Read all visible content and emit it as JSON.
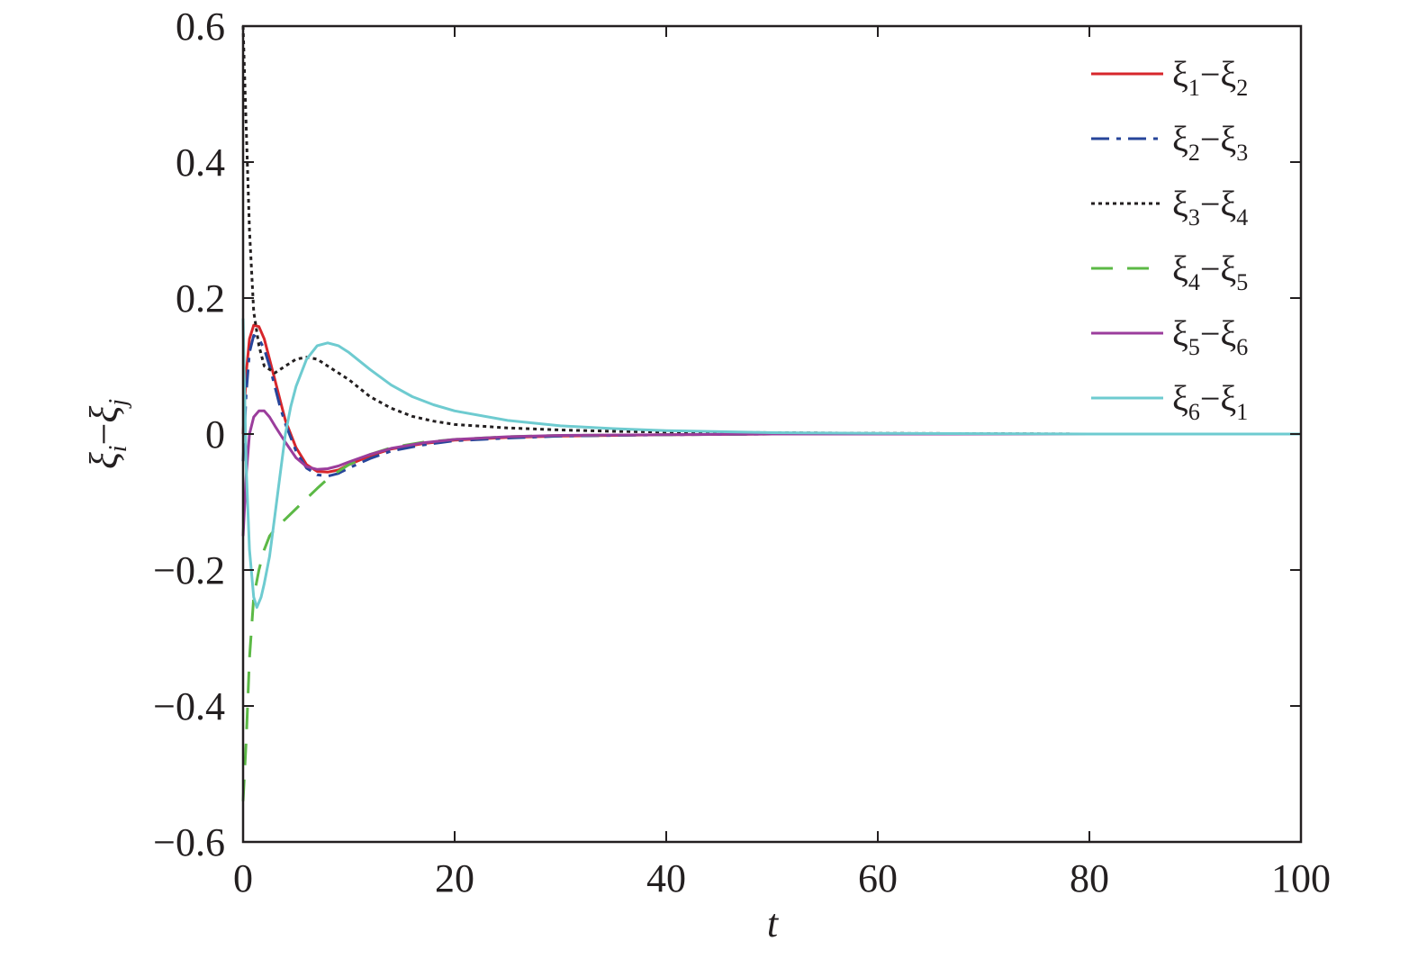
{
  "chart_data": {
    "type": "line",
    "title": "",
    "xlabel": "t",
    "ylabel": "ξi−ξj",
    "ylabel_parts": {
      "main": "ξ",
      "i": "i",
      "minus": "−",
      "j": "j"
    },
    "xlim": [
      0,
      100
    ],
    "ylim": [
      -0.6,
      0.6
    ],
    "xticks": [
      0,
      20,
      40,
      60,
      80,
      100
    ],
    "xtick_labels": [
      "0",
      "20",
      "40",
      "60",
      "80",
      "100"
    ],
    "yticks": [
      -0.6,
      -0.4,
      -0.2,
      0,
      0.2,
      0.4,
      0.6
    ],
    "ytick_labels": [
      "−0.6",
      "−0.4",
      "−0.2",
      "0",
      "0.2",
      "0.4",
      "0.6"
    ],
    "grid": false,
    "legend_position": "top-right",
    "series": [
      {
        "name": "ξ1−ξ2",
        "label_parts": [
          "ξ",
          "1",
          "−",
          "ξ",
          "2"
        ],
        "color": "#d7262b",
        "dash": "solid",
        "x": [
          0,
          0.3,
          0.6,
          1,
          1.5,
          2,
          2.5,
          3,
          3.5,
          4,
          5,
          6,
          7,
          8,
          9,
          10,
          12,
          14,
          17,
          20,
          25,
          30,
          40,
          50,
          60,
          80,
          100
        ],
        "y": [
          0.0,
          0.09,
          0.14,
          0.16,
          0.158,
          0.14,
          0.11,
          0.08,
          0.05,
          0.02,
          -0.02,
          -0.045,
          -0.055,
          -0.056,
          -0.053,
          -0.045,
          -0.032,
          -0.022,
          -0.014,
          -0.009,
          -0.005,
          -0.003,
          -0.001,
          0.0,
          0.0,
          0.0,
          0.0
        ]
      },
      {
        "name": "ξ2−ξ3",
        "label_parts": [
          "ξ",
          "2",
          "−",
          "ξ",
          "3"
        ],
        "color": "#27459a",
        "dash": "20,8,5,8",
        "x": [
          0,
          0.3,
          0.6,
          1,
          1.5,
          2,
          2.5,
          3,
          3.5,
          4,
          5,
          6,
          7,
          8,
          9,
          10,
          12,
          14,
          17,
          20,
          25,
          30,
          40,
          50,
          60,
          80,
          100
        ],
        "y": [
          -0.04,
          0.06,
          0.12,
          0.145,
          0.14,
          0.125,
          0.1,
          0.07,
          0.04,
          0.015,
          -0.025,
          -0.05,
          -0.06,
          -0.062,
          -0.058,
          -0.05,
          -0.036,
          -0.025,
          -0.016,
          -0.01,
          -0.006,
          -0.003,
          -0.001,
          0.0,
          0.0,
          0.0,
          0.0
        ]
      },
      {
        "name": "ξ3−ξ4",
        "label_parts": [
          "ξ",
          "3",
          "−",
          "ξ",
          "4"
        ],
        "color": "#231f20",
        "dash": "4,4",
        "x": [
          0,
          0.3,
          0.6,
          1,
          1.5,
          2,
          3,
          4,
          5,
          6,
          7,
          8,
          10,
          12,
          14,
          16,
          18,
          20,
          25,
          30,
          35,
          40,
          50,
          60,
          80,
          100
        ],
        "y": [
          0.6,
          0.45,
          0.3,
          0.18,
          0.13,
          0.1,
          0.09,
          0.1,
          0.11,
          0.113,
          0.11,
          0.1,
          0.08,
          0.055,
          0.038,
          0.026,
          0.019,
          0.014,
          0.009,
          0.006,
          0.004,
          0.003,
          0.002,
          0.001,
          0.0,
          0.0
        ]
      },
      {
        "name": "ξ4−ξ5",
        "label_parts": [
          "ξ",
          "4",
          "−",
          "ξ",
          "5"
        ],
        "color": "#5cb946",
        "dash": "24,16",
        "x": [
          0,
          0.3,
          0.6,
          1,
          1.5,
          2,
          2.5,
          3,
          4,
          5,
          6,
          7,
          8,
          9,
          10,
          12,
          14,
          17,
          20,
          25,
          30,
          40,
          50,
          60,
          80,
          100
        ],
        "y": [
          -0.54,
          -0.45,
          -0.33,
          -0.24,
          -0.2,
          -0.17,
          -0.15,
          -0.14,
          -0.125,
          -0.11,
          -0.095,
          -0.08,
          -0.066,
          -0.055,
          -0.045,
          -0.03,
          -0.02,
          -0.012,
          -0.008,
          -0.004,
          -0.002,
          -0.001,
          0.0,
          0.0,
          0.0,
          0.0
        ]
      },
      {
        "name": "ξ5−ξ6",
        "label_parts": [
          "ξ",
          "5",
          "−",
          "ξ",
          "6"
        ],
        "color": "#9b3d9c",
        "dash": "solid",
        "x": [
          0,
          0.3,
          0.6,
          1,
          1.5,
          2,
          2.5,
          3,
          3.5,
          4,
          5,
          6,
          7,
          8,
          9,
          10,
          12,
          14,
          17,
          20,
          25,
          30,
          40,
          50,
          60,
          80,
          100
        ],
        "y": [
          -0.15,
          -0.06,
          0.0,
          0.025,
          0.034,
          0.034,
          0.025,
          0.012,
          0.0,
          -0.012,
          -0.035,
          -0.048,
          -0.052,
          -0.051,
          -0.047,
          -0.041,
          -0.03,
          -0.021,
          -0.013,
          -0.008,
          -0.004,
          -0.002,
          -0.001,
          0.0,
          0.0,
          0.0,
          0.0
        ]
      },
      {
        "name": "ξ6−ξ1",
        "label_parts": [
          "ξ",
          "6",
          "−",
          "ξ",
          "1"
        ],
        "color": "#6ecbd0",
        "dash": "solid",
        "x": [
          0,
          0.3,
          0.6,
          1,
          1.3,
          1.7,
          2,
          2.5,
          3,
          3.5,
          4,
          4.5,
          5,
          6,
          7,
          8,
          9,
          10,
          12,
          14,
          16,
          18,
          20,
          25,
          30,
          35,
          40,
          50,
          60,
          80,
          100
        ],
        "y": [
          0.17,
          -0.05,
          -0.17,
          -0.24,
          -0.255,
          -0.24,
          -0.22,
          -0.18,
          -0.12,
          -0.06,
          0.0,
          0.04,
          0.07,
          0.11,
          0.13,
          0.134,
          0.13,
          0.12,
          0.095,
          0.072,
          0.055,
          0.043,
          0.034,
          0.02,
          0.012,
          0.008,
          0.005,
          0.002,
          0.001,
          0.0,
          0.0
        ]
      }
    ]
  }
}
